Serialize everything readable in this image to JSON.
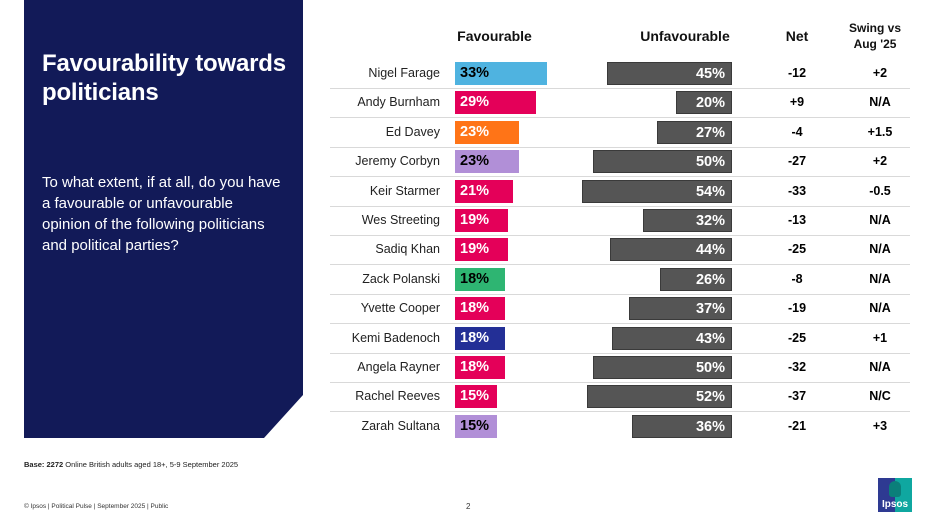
{
  "panel": {
    "title": "Favourability towards politicians",
    "question": "To what extent, if at all, do you have a favourable or unfavourable opinion of the following politicians and political parties?"
  },
  "headers": {
    "favourable": "Favourable",
    "unfavourable": "Unfavourable",
    "net": "Net",
    "swing_line1": "Swing vs",
    "swing_line2": "Aug '25"
  },
  "chart_data": {
    "type": "bar",
    "title": "Favourability towards politicians",
    "unit": "%",
    "categories": [
      "Nigel Farage",
      "Andy Burnham",
      "Ed Davey",
      "Jeremy Corbyn",
      "Keir Starmer",
      "Wes Streeting",
      "Sadiq Khan",
      "Zack Polanski",
      "Yvette Cooper",
      "Kemi Badenoch",
      "Angela Rayner",
      "Rachel Reeves",
      "Zarah Sultana"
    ],
    "series": [
      {
        "name": "Favourable",
        "values": [
          33,
          29,
          23,
          23,
          21,
          19,
          19,
          18,
          18,
          18,
          18,
          15,
          15
        ],
        "colors": [
          "#4fb3e0",
          "#e40059",
          "#ff7417",
          "#b18fd7",
          "#e40059",
          "#e40059",
          "#e40059",
          "#2eb572",
          "#e40059",
          "#232f96",
          "#e40059",
          "#e40059",
          "#b18fd7"
        ],
        "label_colors": [
          "#000000",
          "#ffffff",
          "#ffffff",
          "#000000",
          "#ffffff",
          "#ffffff",
          "#ffffff",
          "#000000",
          "#ffffff",
          "#ffffff",
          "#ffffff",
          "#ffffff",
          "#000000"
        ]
      },
      {
        "name": "Unfavourable",
        "values": [
          45,
          20,
          27,
          50,
          54,
          32,
          44,
          26,
          37,
          43,
          50,
          52,
          36
        ],
        "color": "#555555"
      }
    ],
    "net": [
      "-12",
      "+9",
      "-4",
      "-27",
      "-33",
      "-13",
      "-25",
      "-8",
      "-19",
      "-25",
      "-32",
      "-37",
      "-21"
    ],
    "swing": [
      "+2",
      "N/A",
      "+1.5",
      "+2",
      "-0.5",
      "N/A",
      "N/A",
      "N/A",
      "N/A",
      "+1",
      "N/A",
      "N/C",
      "+3"
    ],
    "xlim": [
      0,
      60
    ]
  },
  "footer": {
    "base_label": "Base: 2272",
    "base_text": " Online British adults aged 18+,  5-9 September  2025",
    "copyright": "© Ipsos | Political Pulse | September 2025 | Public",
    "page_number": "2",
    "logo_text": "Ipsos"
  },
  "colors": {
    "panel": "#121a58",
    "unfavourable": "#555555"
  }
}
